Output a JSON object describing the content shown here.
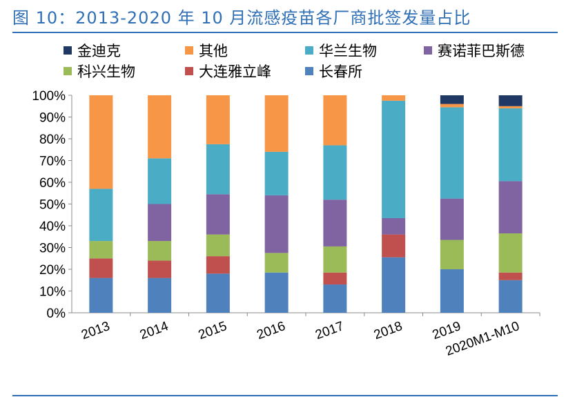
{
  "page": {
    "title": "图 10：2013-2020 年 10 月流感疫苗各厂商批签发量占比"
  },
  "chart_data": {
    "type": "bar",
    "stacked": true,
    "percent": true,
    "categories": [
      "2013",
      "2014",
      "2015",
      "2016",
      "2017",
      "2018",
      "2019",
      "2020M1-M10"
    ],
    "series": [
      {
        "name": "长春所",
        "color": "#4f81bd",
        "values": [
          16,
          16,
          18,
          18.5,
          13,
          25.5,
          20,
          15
        ]
      },
      {
        "name": "大连雅立峰",
        "color": "#c0504d",
        "values": [
          9,
          8,
          8,
          0,
          5.5,
          10.5,
          0,
          3.5
        ]
      },
      {
        "name": "科兴生物",
        "color": "#9bbb59",
        "values": [
          8,
          9,
          10,
          9,
          12,
          0,
          13.5,
          18
        ]
      },
      {
        "name": "赛诺菲巴斯德",
        "color": "#8064a2",
        "values": [
          0,
          17,
          18.5,
          26.5,
          21.5,
          7.5,
          19,
          24
        ]
      },
      {
        "name": "华兰生物",
        "color": "#4bacc6",
        "values": [
          24,
          21,
          23,
          20,
          25,
          54,
          42,
          33.5
        ]
      },
      {
        "name": "其他",
        "color": "#f79646",
        "values": [
          43,
          29,
          22.5,
          26,
          23,
          2.5,
          1.5,
          1
        ]
      },
      {
        "name": "金迪克",
        "color": "#1f3864",
        "values": [
          0,
          0,
          0,
          0,
          0,
          0,
          4,
          5
        ]
      }
    ],
    "legend_order": [
      "金迪克",
      "其他",
      "华兰生物",
      "赛诺菲巴斯德",
      "科兴生物",
      "大连雅立峰",
      "长春所"
    ],
    "ylim": [
      0,
      100
    ],
    "yticks": [
      "0%",
      "10%",
      "20%",
      "30%",
      "40%",
      "50%",
      "60%",
      "70%",
      "80%",
      "90%",
      "100%"
    ],
    "legend_position": "top",
    "grid": false
  }
}
